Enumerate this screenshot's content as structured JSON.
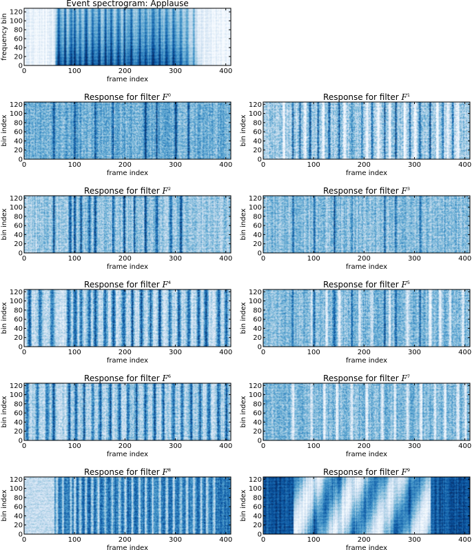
{
  "chart_data": [
    {
      "id": "spec",
      "type": "heatmap",
      "title": "Event spectrogram: Applause",
      "xlabel": "frame index",
      "ylabel": "frequency bin",
      "xlim": [
        0,
        410
      ],
      "ylim": [
        0,
        128
      ],
      "xticks": [
        0,
        100,
        200,
        300,
        400
      ],
      "yticks": [
        0,
        20,
        40,
        60,
        80,
        100,
        120
      ],
      "colormap": "blues",
      "style": {
        "base": 0.08,
        "noise": 0.12,
        "bars": [
          68,
          80,
          92,
          100,
          110,
          122,
          135,
          148,
          160,
          172,
          186,
          198,
          212,
          228,
          240,
          255,
          268,
          282,
          296,
          310,
          322,
          336
        ],
        "barStrength": 0.35,
        "barWidth": 4,
        "activeStart": 60,
        "activeEnd": 350,
        "activeLevel": 0.55,
        "lowBoost": 0.25,
        "mode": "spec"
      }
    },
    {
      "id": "f0",
      "type": "heatmap",
      "title": "Response for filter F",
      "superscript": "0",
      "xlabel": "frame index",
      "ylabel": "bin index",
      "xlim": [
        0,
        410
      ],
      "ylim": [
        0,
        125
      ],
      "xticks": [
        0,
        100,
        200,
        300,
        400
      ],
      "yticks": [
        0,
        20,
        40,
        60,
        80,
        100,
        120
      ],
      "colormap": "blues",
      "style": {
        "base": 0.5,
        "noise": 0.3,
        "bars": [
          58,
          100,
          140,
          175,
          240,
          262,
          300,
          325
        ],
        "barStrength": 0.45,
        "barWidth": 3,
        "dark": true,
        "mode": "resp"
      }
    },
    {
      "id": "f1",
      "type": "heatmap",
      "title": "Response for filter F",
      "superscript": "1",
      "xlabel": "frame index",
      "ylabel": "bin index",
      "xlim": [
        0,
        410
      ],
      "ylim": [
        0,
        125
      ],
      "xticks": [
        0,
        100,
        200,
        300,
        400
      ],
      "yticks": [
        0,
        20,
        40,
        60,
        80,
        100,
        120
      ],
      "colormap": "blues",
      "style": {
        "base": 0.35,
        "noise": 0.35,
        "bars": [
          58,
          72,
          92,
          108,
          130,
          150,
          175,
          195,
          215,
          240,
          262,
          290,
          310,
          330,
          355,
          375
        ],
        "barStrength": 0.5,
        "barWidth": 3,
        "whiteBars": [
          40,
          82,
          118,
          160,
          205,
          228,
          250,
          280,
          300,
          345,
          365,
          385
        ],
        "mode": "resp"
      }
    },
    {
      "id": "f2",
      "type": "heatmap",
      "title": "Response for filter F",
      "superscript": "2",
      "xlabel": "frame index",
      "ylabel": "bin index",
      "xlim": [
        0,
        410
      ],
      "ylim": [
        0,
        125
      ],
      "xticks": [
        0,
        100,
        200,
        300,
        400
      ],
      "yticks": [
        0,
        20,
        40,
        60,
        80,
        100,
        120
      ],
      "colormap": "blues",
      "style": {
        "base": 0.38,
        "noise": 0.3,
        "bars": [
          58,
          90,
          100,
          112,
          128,
          140,
          176,
          198,
          218,
          240,
          262,
          290,
          310
        ],
        "barStrength": 0.5,
        "barWidth": 4,
        "mode": "resp"
      }
    },
    {
      "id": "f3",
      "type": "heatmap",
      "title": "Response for filter F",
      "superscript": "3",
      "xlabel": "frame index",
      "ylabel": "bin index",
      "xlim": [
        0,
        410
      ],
      "ylim": [
        0,
        125
      ],
      "xticks": [
        0,
        100,
        200,
        300,
        400
      ],
      "yticks": [
        0,
        20,
        40,
        60,
        80,
        100,
        120
      ],
      "colormap": "blues",
      "style": {
        "base": 0.42,
        "noise": 0.3,
        "bars": [
          58,
          100,
          140,
          175,
          240,
          262,
          310
        ],
        "barStrength": 0.4,
        "barWidth": 3,
        "mode": "resp"
      }
    },
    {
      "id": "f4",
      "type": "heatmap",
      "title": "Response for filter F",
      "superscript": "4",
      "xlabel": "frame index",
      "ylabel": "bin index",
      "xlim": [
        0,
        410
      ],
      "ylim": [
        0,
        125
      ],
      "xticks": [
        0,
        100,
        200,
        300,
        400
      ],
      "yticks": [
        0,
        20,
        40,
        60,
        80,
        100,
        120
      ],
      "colormap": "blues",
      "style": {
        "base": 0.25,
        "noise": 0.3,
        "bars": [
          10,
          30,
          55,
          88,
          100,
          112,
          128,
          140,
          160,
          176,
          196,
          214,
          232,
          250,
          268,
          288,
          306,
          325,
          345,
          360,
          385,
          400
        ],
        "barStrength": 0.6,
        "barWidth": 6,
        "mode": "resp"
      }
    },
    {
      "id": "f5",
      "type": "heatmap",
      "title": "Response for filter F",
      "superscript": "5",
      "xlabel": "frame index",
      "ylabel": "bin index",
      "xlim": [
        0,
        410
      ],
      "ylim": [
        0,
        125
      ],
      "xticks": [
        0,
        100,
        200,
        300,
        400
      ],
      "yticks": [
        0,
        20,
        40,
        60,
        80,
        100,
        120
      ],
      "colormap": "blues",
      "style": {
        "base": 0.45,
        "noise": 0.3,
        "bars": [
          58,
          100,
          140,
          175,
          240,
          262,
          310
        ],
        "barStrength": 0.35,
        "barWidth": 3,
        "whiteBars": [
          95,
          125,
          150,
          190,
          215,
          250,
          285,
          330,
          350,
          370,
          395
        ],
        "mode": "resp"
      }
    },
    {
      "id": "f6",
      "type": "heatmap",
      "title": "Response for filter F",
      "superscript": "6",
      "xlabel": "frame index",
      "ylabel": "bin index",
      "xlim": [
        0,
        410
      ],
      "ylim": [
        0,
        125
      ],
      "xticks": [
        0,
        100,
        200,
        300,
        400
      ],
      "yticks": [
        0,
        20,
        40,
        60,
        80,
        100,
        120
      ],
      "colormap": "blues",
      "style": {
        "base": 0.3,
        "noise": 0.3,
        "bars": [
          5,
          25,
          45,
          58,
          88,
          102,
          118,
          135,
          150,
          170,
          188,
          205,
          222,
          240,
          258,
          275,
          295,
          312,
          330,
          348,
          365,
          385,
          400
        ],
        "barStrength": 0.55,
        "barWidth": 5,
        "mode": "resp"
      }
    },
    {
      "id": "f7",
      "type": "heatmap",
      "title": "Response for filter F",
      "superscript": "7",
      "xlabel": "frame index",
      "ylabel": "bin index",
      "xlim": [
        0,
        410
      ],
      "ylim": [
        0,
        125
      ],
      "xticks": [
        0,
        100,
        200,
        300,
        400
      ],
      "yticks": [
        0,
        20,
        40,
        60,
        80,
        100,
        120
      ],
      "colormap": "blues",
      "style": {
        "base": 0.45,
        "noise": 0.3,
        "bars": [],
        "barStrength": 0.3,
        "barWidth": 3,
        "whiteBars": [
          58,
          95,
          120,
          145,
          175,
          205,
          235,
          260,
          285,
          312,
          340,
          360,
          385,
          400
        ],
        "mode": "resp"
      }
    },
    {
      "id": "f8",
      "type": "heatmap",
      "title": "Response for filter F",
      "superscript": "8",
      "xlabel": "frame index",
      "ylabel": "bin index",
      "xlim": [
        0,
        410
      ],
      "ylim": [
        0,
        125
      ],
      "xticks": [
        0,
        100,
        200,
        300,
        400
      ],
      "yticks": [
        0,
        20,
        40,
        60,
        80,
        100,
        120
      ],
      "colormap": "blues",
      "style": {
        "base": 0.72,
        "noise": 0.25,
        "bars": [],
        "barStrength": 0.3,
        "barWidth": 3,
        "whiteBars": [
          64,
          76,
          92,
          100,
          110,
          122,
          134,
          146,
          160,
          174,
          188,
          200,
          214,
          228,
          240,
          254,
          268,
          282,
          296,
          310,
          322,
          336,
          350,
          362,
          376
        ],
        "lightStart": 0,
        "lightEnd": 58,
        "lightLevel": 0.25,
        "mode": "resp"
      }
    },
    {
      "id": "f9",
      "type": "heatmap",
      "title": "Response for filter F",
      "superscript": "9",
      "xlabel": "frame index",
      "ylabel": "bin index",
      "xlim": [
        0,
        410
      ],
      "ylim": [
        0,
        125
      ],
      "xticks": [
        0,
        100,
        200,
        300,
        400
      ],
      "yticks": [
        0,
        20,
        40,
        60,
        80,
        100,
        120
      ],
      "colormap": "blues",
      "style": {
        "base": 0.85,
        "noise": 0.15,
        "bars": [
          100,
          150,
          176,
          240,
          262,
          290
        ],
        "barStrength": 0.25,
        "barWidth": 6,
        "activeStart": 58,
        "activeEnd": 330,
        "activeLevel": -0.75,
        "mode": "inv"
      }
    }
  ]
}
